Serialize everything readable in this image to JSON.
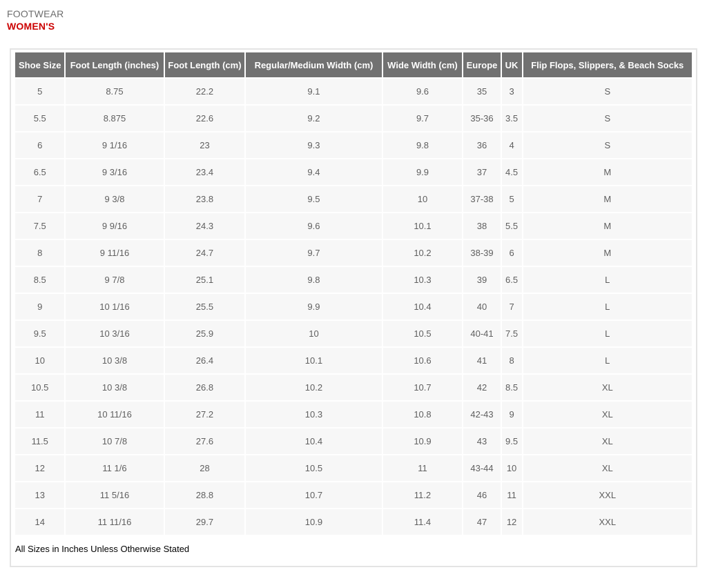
{
  "page": {
    "category_label": "FOOTWEAR",
    "title": "WOMEN'S",
    "footnote": "All Sizes in Inches Unless Otherwise Stated"
  },
  "colors": {
    "title_red": "#cc0000",
    "category_gray": "#6d6d6d",
    "header_bg": "#717171",
    "header_text": "#ffffff",
    "cell_bg": "#f7f7f7",
    "cell_text": "#5f5f5f",
    "container_border": "#e4e4e4"
  },
  "table": {
    "columns": [
      "Shoe Size",
      "Foot Length (inches)",
      "Foot Length (cm)",
      "Regular/Medium Width (cm)",
      "Wide Width (cm)",
      "Europe",
      "UK",
      "Flip Flops, Slippers, & Beach Socks"
    ],
    "rows": [
      [
        "5",
        "8.75",
        "22.2",
        "9.1",
        "9.6",
        "35",
        "3",
        "S"
      ],
      [
        "5.5",
        "8.875",
        "22.6",
        "9.2",
        "9.7",
        "35-36",
        "3.5",
        "S"
      ],
      [
        "6",
        "9 1/16",
        "23",
        "9.3",
        "9.8",
        "36",
        "4",
        "S"
      ],
      [
        "6.5",
        "9 3/16",
        "23.4",
        "9.4",
        "9.9",
        "37",
        "4.5",
        "M"
      ],
      [
        "7",
        "9 3/8",
        "23.8",
        "9.5",
        "10",
        "37-38",
        "5",
        "M"
      ],
      [
        "7.5",
        "9 9/16",
        "24.3",
        "9.6",
        "10.1",
        "38",
        "5.5",
        "M"
      ],
      [
        "8",
        "9 11/16",
        "24.7",
        "9.7",
        "10.2",
        "38-39",
        "6",
        "M"
      ],
      [
        "8.5",
        "9 7/8",
        "25.1",
        "9.8",
        "10.3",
        "39",
        "6.5",
        "L"
      ],
      [
        "9",
        "10 1/16",
        "25.5",
        "9.9",
        "10.4",
        "40",
        "7",
        "L"
      ],
      [
        "9.5",
        "10 3/16",
        "25.9",
        "10",
        "10.5",
        "40-41",
        "7.5",
        "L"
      ],
      [
        "10",
        "10 3/8",
        "26.4",
        "10.1",
        "10.6",
        "41",
        "8",
        "L"
      ],
      [
        "10.5",
        "10 3/8",
        "26.8",
        "10.2",
        "10.7",
        "42",
        "8.5",
        "XL"
      ],
      [
        "11",
        "10 11/16",
        "27.2",
        "10.3",
        "10.8",
        "42-43",
        "9",
        "XL"
      ],
      [
        "11.5",
        "10 7/8",
        "27.6",
        "10.4",
        "10.9",
        "43",
        "9.5",
        "XL"
      ],
      [
        "12",
        "11 1/6",
        "28",
        "10.5",
        "11",
        "43-44",
        "10",
        "XL"
      ],
      [
        "13",
        "11 5/16",
        "28.8",
        "10.7",
        "11.2",
        "46",
        "11",
        "XXL"
      ],
      [
        "14",
        "11 11/16",
        "29.7",
        "10.9",
        "11.4",
        "47",
        "12",
        "XXL"
      ]
    ]
  }
}
